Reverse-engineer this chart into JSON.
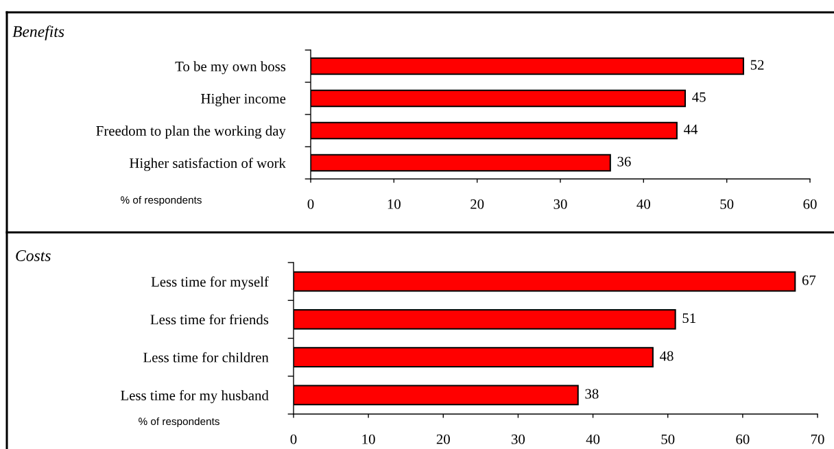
{
  "chart_data": [
    {
      "type": "bar",
      "orientation": "horizontal",
      "title": "Benefits",
      "xlabel": "% of respondents",
      "categories": [
        "To be my own boss",
        "Higher income",
        "Freedom to plan the working day",
        "Higher satisfaction of work"
      ],
      "values": [
        52,
        45,
        44,
        36
      ],
      "color": "#ff0000",
      "xlim": [
        0,
        60
      ],
      "xticks": [
        0,
        10,
        20,
        30,
        40,
        50,
        60
      ],
      "data_labels": true
    },
    {
      "type": "bar",
      "orientation": "horizontal",
      "title": "Costs",
      "xlabel": "% of respondents",
      "categories": [
        "Less time for myself",
        "Less time for friends",
        "Less time for children",
        "Less time for my husband"
      ],
      "values": [
        67,
        51,
        48,
        38
      ],
      "color": "#ff0000",
      "xlim": [
        0,
        70
      ],
      "xticks": [
        0,
        10,
        20,
        30,
        40,
        50,
        60,
        70
      ],
      "data_labels": true
    }
  ]
}
